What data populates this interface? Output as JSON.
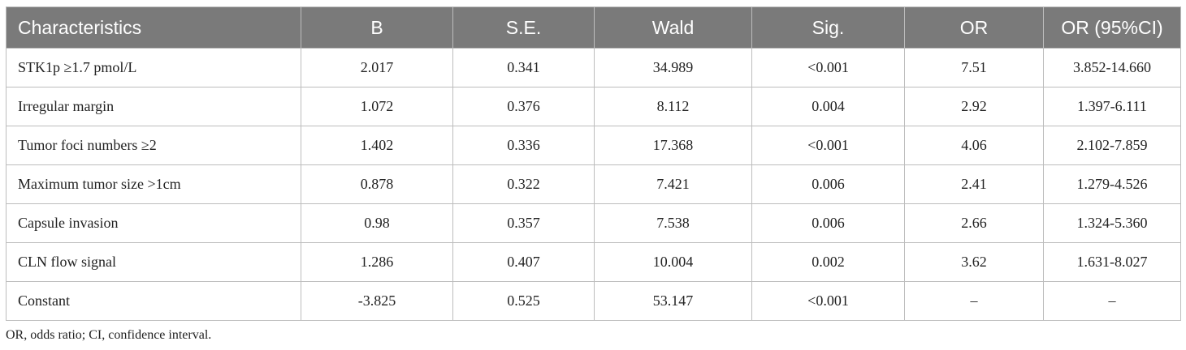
{
  "table": {
    "headers": [
      "Characteristics",
      "B",
      "S.E.",
      "Wald",
      "Sig.",
      "OR",
      "OR (95%CI)"
    ],
    "rows": [
      [
        "STK1p ≥1.7 pmol/L",
        "2.017",
        "0.341",
        "34.989",
        "<0.001",
        "7.51",
        "3.852-14.660"
      ],
      [
        "Irregular margin",
        "1.072",
        "0.376",
        "8.112",
        "0.004",
        "2.92",
        "1.397-6.111"
      ],
      [
        "Tumor foci numbers ≥2",
        "1.402",
        "0.336",
        "17.368",
        "<0.001",
        "4.06",
        "2.102-7.859"
      ],
      [
        "Maximum tumor size >1cm",
        "0.878",
        "0.322",
        "7.421",
        "0.006",
        "2.41",
        "1.279-4.526"
      ],
      [
        "Capsule invasion",
        "0.98",
        "0.357",
        "7.538",
        "0.006",
        "2.66",
        "1.324-5.360"
      ],
      [
        "CLN flow signal",
        "1.286",
        "0.407",
        "10.004",
        "0.002",
        "3.62",
        "1.631-8.027"
      ],
      [
        "Constant",
        "-3.825",
        "0.525",
        "53.147",
        "<0.001",
        "–",
        "–"
      ]
    ]
  },
  "footnote": "OR, odds ratio; CI, confidence interval.",
  "colors": {
    "header_bg": "#7a7a7a",
    "header_text": "#ffffff",
    "border": "#bdbdbd",
    "body_text": "#222222"
  }
}
